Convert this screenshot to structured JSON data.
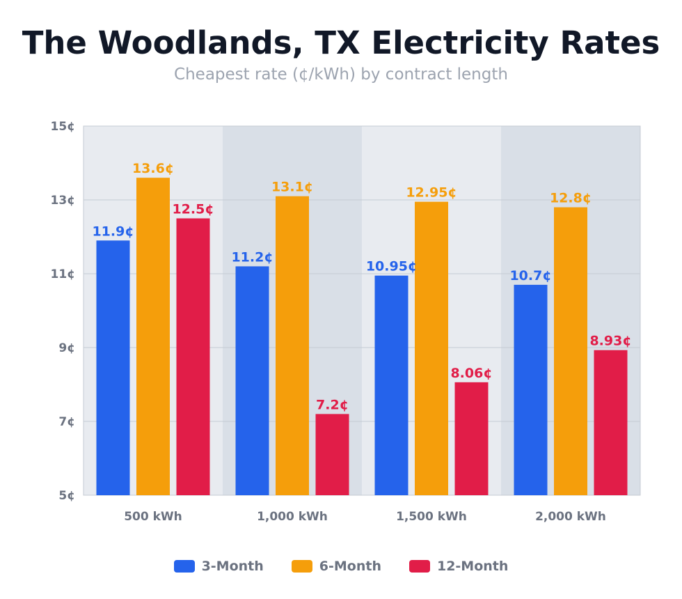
{
  "title": "The Woodlands, TX Electricity Rates",
  "subtitle": "Cheapest rate (¢/kWh) by contract length",
  "colors": {
    "3-Month": "#2563eb",
    "6-Month": "#f59e0b",
    "12-Month": "#e11d48",
    "band_light": "#e8ebf0",
    "band_dark": "#d9dfe7",
    "grid": "#c5cbd3",
    "axis_text": "#6b7280"
  },
  "legend": [
    "3-Month",
    "6-Month",
    "12-Month"
  ],
  "chart_data": {
    "type": "bar",
    "categories": [
      "500 kWh",
      "1,000 kWh",
      "1,500 kWh",
      "2,000 kWh"
    ],
    "series": [
      {
        "name": "3-Month",
        "values": [
          11.9,
          11.2,
          10.95,
          10.7
        ],
        "labels": [
          "11.9¢",
          "11.2¢",
          "10.95¢",
          "10.7¢"
        ]
      },
      {
        "name": "6-Month",
        "values": [
          13.6,
          13.1,
          12.95,
          12.8
        ],
        "labels": [
          "13.6¢",
          "13.1¢",
          "12.95¢",
          "12.8¢"
        ]
      },
      {
        "name": "12-Month",
        "values": [
          12.5,
          7.2,
          8.06,
          8.93
        ],
        "labels": [
          "12.5¢",
          "7.2¢",
          "8.06¢",
          "8.93¢"
        ]
      }
    ],
    "ylim": [
      5,
      15
    ],
    "yticks": [
      5,
      7,
      9,
      11,
      13,
      15
    ],
    "ytick_labels": [
      "5¢",
      "7¢",
      "9¢",
      "11¢",
      "13¢",
      "15¢"
    ],
    "grid": true,
    "legend_position": "bottom"
  }
}
